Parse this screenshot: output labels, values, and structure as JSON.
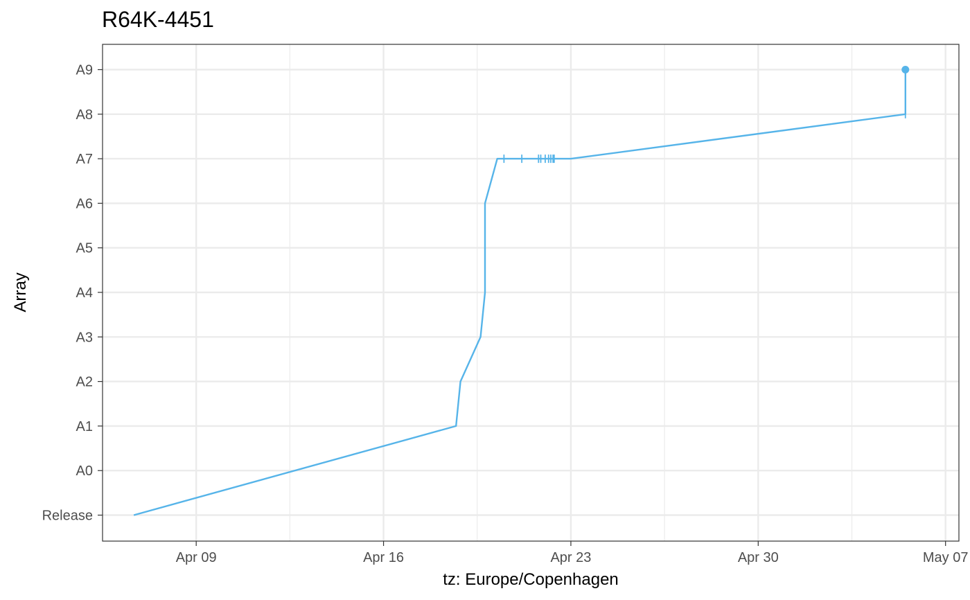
{
  "chart_data": {
    "type": "line",
    "title": "R64K-4451",
    "xlabel": "tz: Europe/Copenhagen",
    "ylabel": "Array",
    "x_type": "date",
    "x_ticks": [
      {
        "date": "2024-04-09",
        "label": "Apr 09"
      },
      {
        "date": "2024-04-16",
        "label": "Apr 16"
      },
      {
        "date": "2024-04-23",
        "label": "Apr 23"
      },
      {
        "date": "2024-04-30",
        "label": "Apr 30"
      },
      {
        "date": "2024-05-07",
        "label": "May 07"
      }
    ],
    "xlim": [
      "2024-04-05 12:00",
      "2024-05-07 12:00"
    ],
    "y_categories": [
      "Release",
      "A0",
      "A1",
      "A2",
      "A3",
      "A4",
      "A5",
      "A6",
      "A7",
      "A8",
      "A9"
    ],
    "grid": true,
    "series": [
      {
        "color": "#56B4E9",
        "points": [
          {
            "x": "2024-04-06 16:00",
            "y": "Release"
          },
          {
            "x": "2024-04-18 17:00",
            "y": "A1"
          },
          {
            "x": "2024-04-18 21:00",
            "y": "A2"
          },
          {
            "x": "2024-04-19 15:00",
            "y": "A3"
          },
          {
            "x": "2024-04-19 19:00",
            "y": "A4"
          },
          {
            "x": "2024-04-19 19:00",
            "y": "A6"
          },
          {
            "x": "2024-04-20 06:00",
            "y": "A7"
          },
          {
            "x": "2024-04-21 12:00",
            "y": "A7"
          },
          {
            "x": "2024-04-22 00:00",
            "y": "A7"
          },
          {
            "x": "2024-04-22 12:00",
            "y": "A7"
          },
          {
            "x": "2024-04-23 00:00",
            "y": "A7"
          },
          {
            "x": "2024-05-05 12:00",
            "y": "A8"
          },
          {
            "x": "2024-05-05 12:00",
            "y": "A9"
          }
        ],
        "ticks_at": [
          {
            "x": "2024-04-20 12:00",
            "y": "A7"
          },
          {
            "x": "2024-04-21 04:00",
            "y": "A7"
          },
          {
            "x": "2024-04-21 19:00",
            "y": "A7"
          },
          {
            "x": "2024-04-21 21:00",
            "y": "A7"
          },
          {
            "x": "2024-04-22 01:00",
            "y": "A7"
          },
          {
            "x": "2024-04-22 04:00",
            "y": "A7"
          },
          {
            "x": "2024-04-22 06:00",
            "y": "A7"
          },
          {
            "x": "2024-04-22 08:00",
            "y": "A7"
          },
          {
            "x": "2024-04-22 09:00",
            "y": "A7"
          },
          {
            "x": "2024-05-05 12:00",
            "y": "A8"
          }
        ],
        "end_point": {
          "x": "2024-05-05 12:00",
          "y": "A9"
        }
      }
    ]
  }
}
